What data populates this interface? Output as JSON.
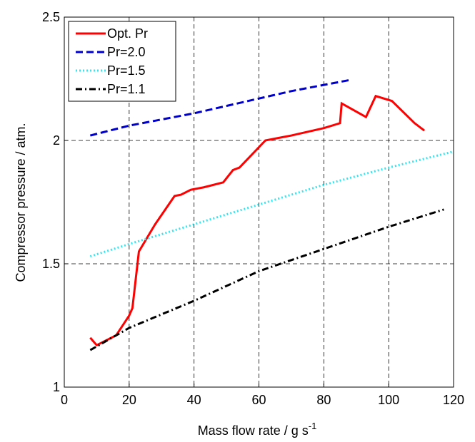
{
  "chart_data": {
    "type": "line",
    "xlabel": {
      "text": "Mass flow rate / g s",
      "superscript": "-1"
    },
    "ylabel": "Compressor pressure / atm.",
    "xlim": [
      0,
      120
    ],
    "xticks": [
      0,
      20,
      40,
      60,
      80,
      100,
      120
    ],
    "ylim": [
      1,
      2.5
    ],
    "yticks": [
      1,
      1.5,
      2,
      2.5
    ],
    "grid": true,
    "legend": "upper-left",
    "series": [
      {
        "name": "Opt. Pr",
        "color": "#ff0000",
        "style": "solid",
        "x": [
          8,
          10,
          16,
          20,
          21,
          23,
          28,
          34,
          36,
          39,
          43,
          49,
          52,
          54,
          62,
          70,
          80,
          85,
          85.5,
          93,
          96,
          101,
          108,
          111
        ],
        "values": [
          1.2,
          1.17,
          1.21,
          1.29,
          1.32,
          1.55,
          1.66,
          1.775,
          1.78,
          1.8,
          1.81,
          1.83,
          1.88,
          1.89,
          2.0,
          2.02,
          2.05,
          2.07,
          2.15,
          2.095,
          2.18,
          2.16,
          2.07,
          2.04
        ]
      },
      {
        "name": "Pr=2.0",
        "color": "#0000cc",
        "style": "dashed",
        "x": [
          8,
          20,
          40,
          60,
          70,
          80,
          88
        ],
        "values": [
          2.02,
          2.06,
          2.11,
          2.17,
          2.2,
          2.225,
          2.245
        ]
      },
      {
        "name": "Pr=1.5",
        "color": "#33e6f0",
        "style": "dotted",
        "x": [
          8,
          20,
          40,
          60,
          80,
          100,
          120
        ],
        "values": [
          1.53,
          1.58,
          1.66,
          1.74,
          1.82,
          1.89,
          1.955
        ]
      },
      {
        "name": "Pr=1.1",
        "color": "#000000",
        "style": "dashdot",
        "x": [
          8,
          20,
          40,
          60,
          80,
          100,
          117
        ],
        "values": [
          1.15,
          1.24,
          1.35,
          1.47,
          1.56,
          1.65,
          1.72
        ]
      }
    ]
  }
}
